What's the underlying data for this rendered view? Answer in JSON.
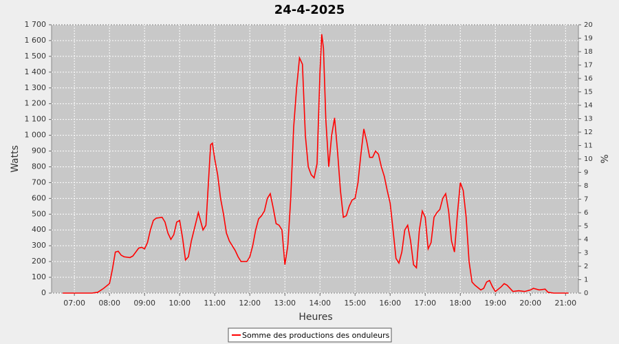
{
  "chart_data": {
    "type": "line",
    "title": "24-4-2025",
    "x_label": "Heures",
    "y_label": "Watts",
    "y2_label": "%",
    "x": [
      "06:40",
      "07:00",
      "07:20",
      "07:30",
      "07:40",
      "07:50",
      "08:00",
      "08:05",
      "08:10",
      "08:15",
      "08:20",
      "08:25",
      "08:35",
      "08:40",
      "08:50",
      "08:55",
      "09:00",
      "09:05",
      "09:10",
      "09:15",
      "09:20",
      "09:30",
      "09:35",
      "09:40",
      "09:45",
      "09:50",
      "09:55",
      "10:00",
      "10:05",
      "10:10",
      "10:15",
      "10:20",
      "10:30",
      "10:32",
      "10:40",
      "10:45",
      "10:50",
      "10:53",
      "10:56",
      "11:00",
      "11:05",
      "11:10",
      "11:15",
      "11:20",
      "11:25",
      "11:30",
      "11:35",
      "11:40",
      "11:45",
      "11:55",
      "12:00",
      "12:05",
      "12:10",
      "12:15",
      "12:20",
      "12:25",
      "12:30",
      "12:35",
      "12:40",
      "12:45",
      "12:50",
      "12:55",
      "13:00",
      "13:05",
      "13:10",
      "13:15",
      "13:20",
      "13:25",
      "13:30",
      "13:35",
      "13:40",
      "13:45",
      "13:50",
      "13:55",
      "14:00",
      "14:03",
      "14:06",
      "14:10",
      "14:15",
      "14:20",
      "14:25",
      "14:30",
      "14:35",
      "14:40",
      "14:45",
      "14:50",
      "14:55",
      "15:00",
      "15:05",
      "15:10",
      "15:15",
      "15:20",
      "15:25",
      "15:30",
      "15:35",
      "15:40",
      "15:45",
      "15:50",
      "15:55",
      "16:00",
      "16:05",
      "16:10",
      "16:15",
      "16:20",
      "16:25",
      "16:30",
      "16:35",
      "16:40",
      "16:45",
      "16:50",
      "16:55",
      "17:00",
      "17:05",
      "17:10",
      "17:15",
      "17:20",
      "17:25",
      "17:30",
      "17:35",
      "17:40",
      "17:45",
      "17:50",
      "17:55",
      "18:00",
      "18:05",
      "18:10",
      "18:15",
      "18:20",
      "18:25",
      "18:35",
      "18:40",
      "18:45",
      "18:50",
      "18:55",
      "19:00",
      "19:10",
      "19:15",
      "19:20",
      "19:30",
      "19:40",
      "19:50",
      "20:00",
      "20:05",
      "20:15",
      "20:25",
      "20:30",
      "20:40",
      "21:05"
    ],
    "series": [
      {
        "name": "Somme des productions des onduleurs",
        "color": "#ff0000",
        "values": [
          0,
          0,
          0,
          0,
          5,
          30,
          60,
          150,
          260,
          265,
          240,
          230,
          225,
          235,
          285,
          290,
          280,
          320,
          400,
          460,
          475,
          480,
          450,
          380,
          340,
          370,
          450,
          460,
          350,
          210,
          230,
          330,
          480,
          510,
          400,
          430,
          750,
          940,
          950,
          850,
          750,
          600,
          500,
          380,
          330,
          300,
          270,
          230,
          200,
          200,
          230,
          300,
          400,
          470,
          490,
          520,
          600,
          630,
          540,
          440,
          430,
          400,
          180,
          300,
          600,
          1050,
          1300,
          1490,
          1450,
          1000,
          800,
          750,
          730,
          820,
          1400,
          1640,
          1550,
          1100,
          800,
          1000,
          1110,
          900,
          650,
          480,
          490,
          550,
          590,
          600,
          700,
          880,
          1040,
          960,
          860,
          860,
          900,
          880,
          800,
          740,
          650,
          570,
          400,
          220,
          190,
          260,
          400,
          430,
          330,
          180,
          160,
          400,
          520,
          480,
          280,
          320,
          480,
          510,
          530,
          600,
          630,
          520,
          330,
          260,
          500,
          700,
          650,
          480,
          200,
          70,
          50,
          20,
          30,
          70,
          80,
          40,
          10,
          40,
          60,
          50,
          10,
          15,
          10,
          20,
          30,
          20,
          25,
          5,
          0,
          0
        ]
      }
    ],
    "xlim": [
      "06:21",
      "21:22"
    ],
    "xticks": [
      "07:00",
      "08:00",
      "09:00",
      "10:00",
      "11:00",
      "12:00",
      "13:00",
      "14:00",
      "15:00",
      "16:00",
      "17:00",
      "18:00",
      "19:00",
      "20:00",
      "21:00"
    ],
    "ylim": [
      0,
      1700
    ],
    "yticks": [
      0,
      100,
      200,
      300,
      400,
      500,
      600,
      700,
      800,
      900,
      {
        "value": 1000,
        "label": "1 000"
      },
      {
        "value": 1100,
        "label": "1 100"
      },
      {
        "value": 1200,
        "label": "1 200"
      },
      {
        "value": 1300,
        "label": "1 300"
      },
      {
        "value": 1400,
        "label": "1 400"
      },
      {
        "value": 1500,
        "label": "1 500"
      },
      {
        "value": 1600,
        "label": "1 600"
      },
      {
        "value": 1700,
        "label": "1 700"
      }
    ],
    "y2lim": [
      0,
      20
    ],
    "y2ticks": [
      0,
      1,
      2,
      3,
      4,
      5,
      6,
      7,
      8,
      9,
      10,
      11,
      12,
      13,
      14,
      15,
      16,
      17,
      18,
      19,
      20
    ],
    "grid": true,
    "background": "#c8c8c8",
    "legend": "bottom"
  }
}
